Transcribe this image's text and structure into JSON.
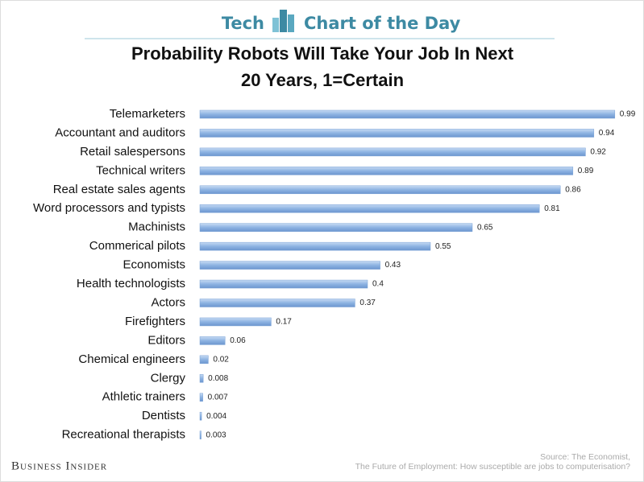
{
  "header": {
    "left": "Tech",
    "right": "Chart of the Day"
  },
  "chart_data": {
    "type": "hbar",
    "title": "Probability Robots Will Take Your Job In Next 20 Years, 1=Certain",
    "categories": [
      "Telemarketers",
      "Accountant and auditors",
      "Retail salespersons",
      "Technical writers",
      "Real estate sales agents",
      "Word processors and typists",
      "Machinists",
      "Commerical pilots",
      "Economists",
      "Health technologists",
      "Actors",
      "Firefighters",
      "Editors",
      "Chemical engineers",
      "Clergy",
      "Athletic trainers",
      "Dentists",
      "Recreational therapists"
    ],
    "values": [
      0.99,
      0.94,
      0.92,
      0.89,
      0.86,
      0.81,
      0.65,
      0.55,
      0.43,
      0.4,
      0.37,
      0.17,
      0.06,
      0.02,
      0.008,
      0.007,
      0.004,
      0.003
    ],
    "color": "#8db3e2",
    "xlim": [
      0,
      1
    ]
  },
  "footer": {
    "brand": "Business Insider",
    "source": "Source: The Economist,",
    "source_detail": "The Future of Employment: How susceptible are jobs to computerisation?"
  }
}
